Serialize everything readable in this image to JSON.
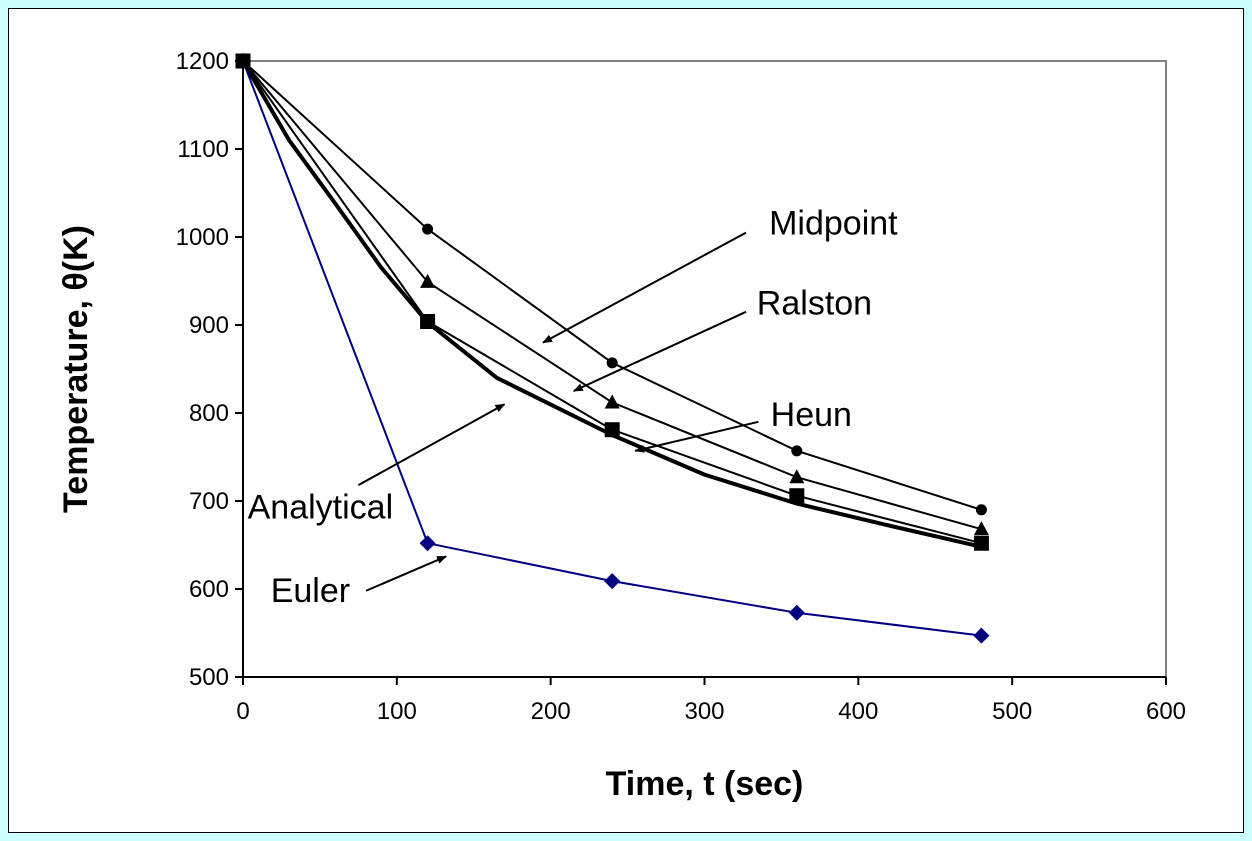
{
  "chart_data": {
    "type": "line",
    "title": "",
    "xlabel": "Time, t (sec)",
    "ylabel": "Temperature,  θ(K)",
    "xlim": [
      0,
      600
    ],
    "ylim": [
      500,
      1200
    ],
    "x_ticks": [
      0,
      100,
      200,
      300,
      400,
      500,
      600
    ],
    "y_ticks": [
      500,
      600,
      700,
      800,
      900,
      1000,
      1100,
      1200
    ],
    "grid": false,
    "legend": "none",
    "series": [
      {
        "key": "analytical",
        "name": "Analytical",
        "color": "#000000",
        "marker": "none",
        "x": [
          0,
          30,
          60,
          90,
          120,
          165,
          240,
          300,
          360,
          420,
          480
        ],
        "y": [
          1200,
          1110,
          1038,
          965,
          903,
          840,
          775,
          730,
          697,
          672,
          648
        ]
      },
      {
        "key": "euler",
        "name": "Euler",
        "color": "#000080",
        "marker": "diamond",
        "x": [
          0,
          120,
          240,
          360,
          480
        ],
        "y": [
          1200,
          652,
          609,
          573,
          547
        ]
      },
      {
        "key": "heun",
        "name": "Heun",
        "color": "#000000",
        "marker": "square",
        "x": [
          0,
          120,
          240,
          360,
          480
        ],
        "y": [
          1200,
          904,
          781,
          706,
          652
        ]
      },
      {
        "key": "ralston",
        "name": "Ralston",
        "color": "#000000",
        "marker": "triangle",
        "x": [
          0,
          120,
          240,
          360,
          480
        ],
        "y": [
          1200,
          949,
          812,
          727,
          668
        ]
      },
      {
        "key": "midpoint",
        "name": "Midpoint",
        "color": "#000000",
        "marker": "circle",
        "x": [
          0,
          120,
          240,
          360,
          480
        ],
        "y": [
          1200,
          1009,
          857,
          757,
          690
        ]
      }
    ],
    "annotations": [
      {
        "key": "midpoint",
        "text": "Midpoint",
        "label_at": [
          342,
          1003
        ],
        "arrow_from": [
          327,
          1005
        ],
        "arrow_to": [
          195,
          880
        ]
      },
      {
        "key": "ralston",
        "text": "Ralston",
        "label_at": [
          334,
          912
        ],
        "arrow_from": [
          327,
          915
        ],
        "arrow_to": [
          215,
          825
        ]
      },
      {
        "key": "heun",
        "text": "Heun",
        "label_at": [
          343,
          785
        ],
        "arrow_from": [
          335,
          790
        ],
        "arrow_to": [
          255,
          757
        ]
      },
      {
        "key": "analytical",
        "text": "Analytical",
        "label_at": [
          3,
          680
        ],
        "arrow_from": [
          75,
          718
        ],
        "arrow_to": [
          170,
          810
        ]
      },
      {
        "key": "euler",
        "text": "Euler",
        "label_at": [
          18,
          585
        ],
        "arrow_from": [
          80,
          598
        ],
        "arrow_to": [
          132,
          637
        ]
      }
    ]
  }
}
